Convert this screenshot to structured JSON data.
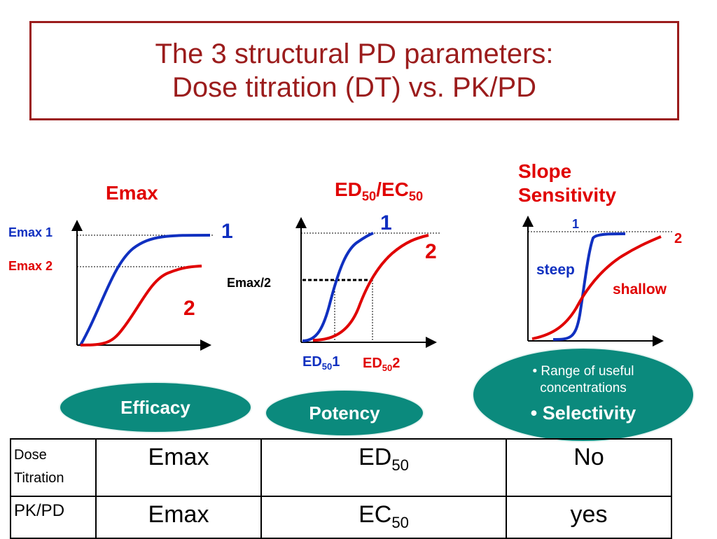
{
  "title": {
    "line1": "The 3 structural PD parameters:",
    "line2": "Dose titration (DT) vs. PK/PD"
  },
  "panels": {
    "emax": {
      "header": "Emax",
      "emax1": "Emax 1",
      "emax2": "Emax 2",
      "curve1": "1",
      "curve2": "2"
    },
    "ed50": {
      "header_main": "ED",
      "header_sub": "50",
      "header_sep": "/EC",
      "header_sub2": "50",
      "half_label": "Emax/2",
      "curve1": "1",
      "curve2": "2",
      "ed1_main": "ED",
      "ed1_sub": "50",
      "ed1_num": "1",
      "ed2_main": "ED",
      "ed2_sub": "50",
      "ed2_num": "2"
    },
    "slope": {
      "header_line1": "Slope",
      "header_line2": "Sensitivity",
      "curve1": "1",
      "curve2": "2",
      "steep": "steep",
      "shallow": "shallow"
    }
  },
  "pills": {
    "efficacy": "Efficacy",
    "potency": "Potency",
    "range": "Range of useful concentrations",
    "selectivity": "Selectivity",
    "bullet": "•"
  },
  "table": {
    "rows": [
      {
        "label": "Dose Titration",
        "c1": "Emax",
        "c2_main": "ED",
        "c2_sub": "50",
        "c3": "No"
      },
      {
        "label": "PK/PD",
        "c1": "Emax",
        "c2_main": "EC",
        "c2_sub": "50",
        "c3": "yes"
      }
    ]
  },
  "colors": {
    "title": "#9b1c1c",
    "red": "#e00000",
    "blue": "#1030c0",
    "teal": "#0b8a7d"
  }
}
